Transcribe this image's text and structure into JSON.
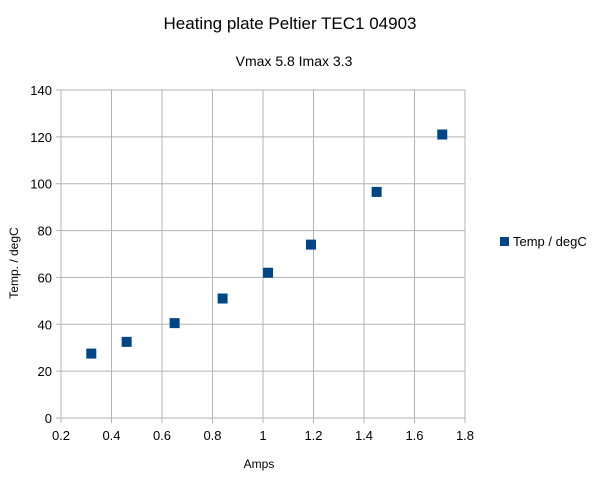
{
  "chart_data": {
    "type": "scatter",
    "title": "Heating plate Peltier TEC1 04903",
    "subtitle": "Vmax 5.8  Imax 3.3",
    "xlabel": "Amps",
    "ylabel": "Temp. / degC",
    "xlim": [
      0.2,
      1.8
    ],
    "ylim": [
      0,
      140
    ],
    "xticks": [
      "0.2",
      "0.4",
      "0.6",
      "0.8",
      "1",
      "1.2",
      "1.4",
      "1.6",
      "1.8"
    ],
    "yticks": [
      "0",
      "20",
      "40",
      "60",
      "80",
      "100",
      "120",
      "140"
    ],
    "grid": true,
    "legend_position": "right",
    "series": [
      {
        "name": "Temp / degC",
        "color": "#004586",
        "marker": "square",
        "x": [
          0.32,
          0.46,
          0.65,
          0.84,
          1.02,
          1.19,
          1.45,
          1.71
        ],
        "y": [
          27.5,
          32.5,
          40.5,
          51,
          62,
          74,
          96.5,
          121
        ]
      }
    ]
  }
}
